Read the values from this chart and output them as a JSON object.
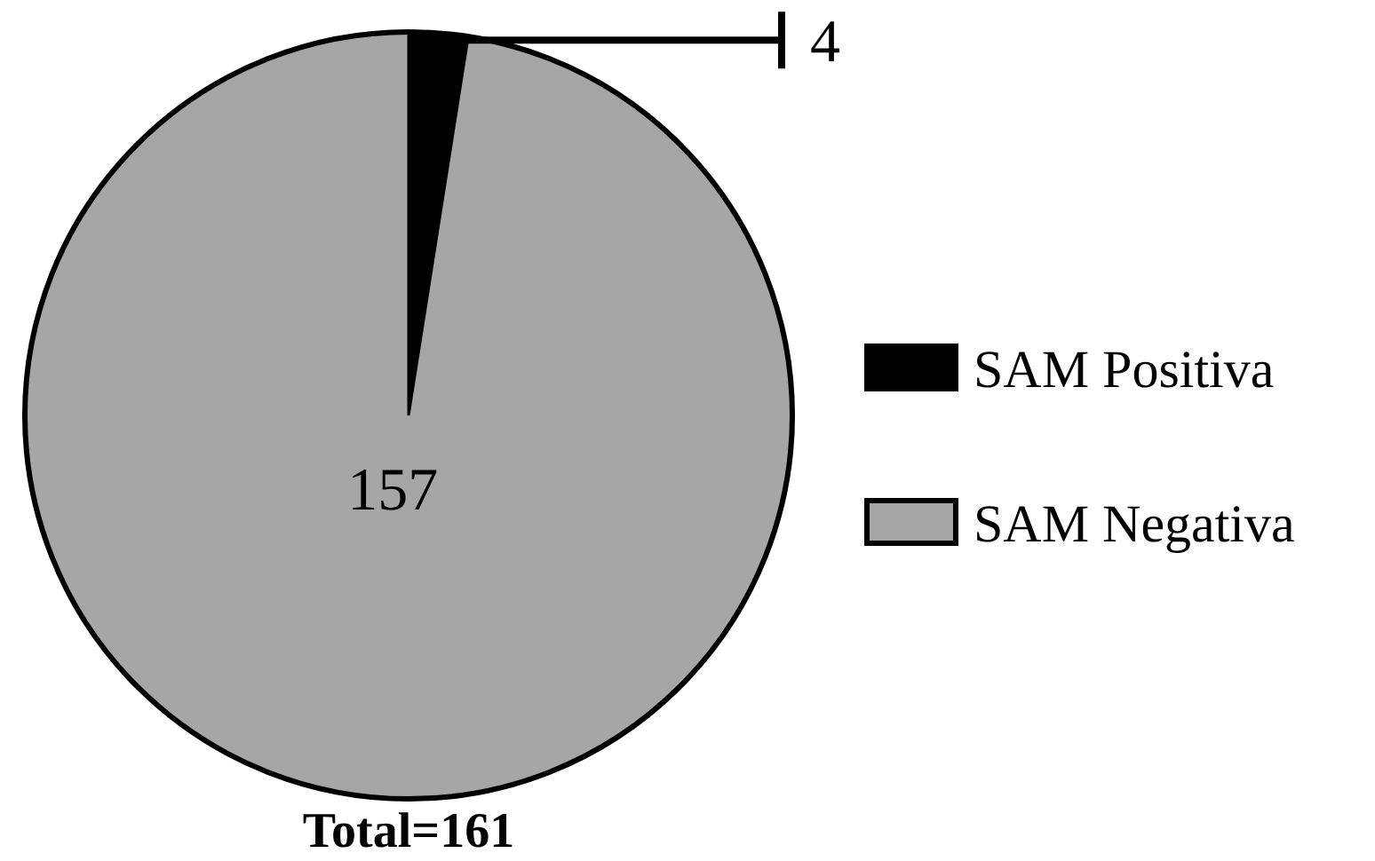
{
  "chart_data": {
    "type": "pie",
    "title": "Total=161",
    "categories": [
      "SAM Positiva",
      "SAM Negativa"
    ],
    "values": [
      4,
      157
    ],
    "colors": [
      "#000000",
      "#a6a6a6"
    ],
    "data_labels": true,
    "legend": "right"
  }
}
